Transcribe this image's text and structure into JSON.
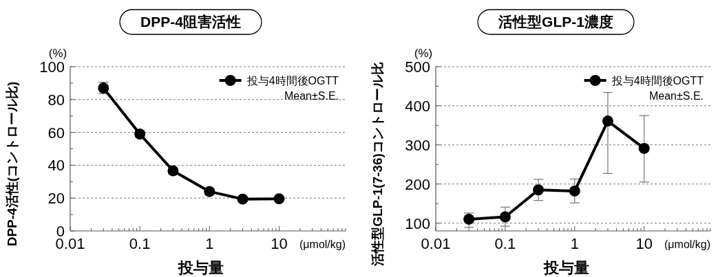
{
  "chart_data": [
    {
      "type": "line",
      "title": "DPP-4阻害活性",
      "xlabel": "投与量",
      "ylabel": "DPP-4活性(コントロール比)",
      "annotations": [
        "(%)",
        "(μmol/kg)",
        "Mean±S.E."
      ],
      "log": "x",
      "grid": "y",
      "legend": "top right",
      "marker": "circle",
      "line_style": "solid",
      "x": [
        0.03,
        0.1,
        0.3,
        1,
        3,
        10
      ],
      "series": [
        {
          "name": "投与4時間後OGTT",
          "color": "#000000",
          "values": [
            87,
            59,
            36.6,
            24,
            19.4,
            19.6
          ],
          "errors": [
            3.5,
            2,
            2,
            2,
            1,
            1
          ]
        }
      ],
      "xlim": [
        0.01,
        90
      ],
      "xticks": [
        0.01,
        0.1,
        1,
        10
      ],
      "ylim": [
        0,
        100
      ],
      "yticks": [
        0,
        {
          "value": 10,
          "label": null
        },
        20,
        {
          "value": 30,
          "label": null
        },
        40,
        {
          "value": 50,
          "label": null
        },
        60,
        {
          "value": 70,
          "label": null
        },
        80,
        {
          "value": 90,
          "label": null
        },
        100
      ]
    },
    {
      "type": "line",
      "title": "活性型GLP-1濃度",
      "xlabel": "投与量",
      "ylabel": "活性型GLP-1(7-36)コントロール比",
      "annotations": [
        "(%)",
        "(μmol/kg)",
        "Mean±S.E."
      ],
      "log": "x",
      "grid": "y",
      "legend": "top right",
      "marker": "circle",
      "line_style": "solid",
      "x": [
        0.03,
        0.1,
        0.3,
        1,
        3,
        10
      ],
      "series": [
        {
          "name": "投与4時間後OGTT",
          "color": "#000000",
          "values": [
            110,
            116,
            185,
            182,
            361,
            291
          ],
          "errors": [
            [
              89,
              126
            ],
            [
              92,
              141
            ],
            [
              158,
              212
            ],
            [
              152,
              213
            ],
            [
              227,
              434
            ],
            [
              205,
              375
            ]
          ]
        }
      ],
      "xlim": [
        0.01,
        90
      ],
      "xticks": [
        0.01,
        0.1,
        1,
        10
      ],
      "ylim": [
        80,
        500
      ],
      "yticks": [
        100,
        {
          "value": 150,
          "label": null
        },
        200,
        {
          "value": 250,
          "label": null
        },
        300,
        {
          "value": 350,
          "label": null
        },
        400,
        {
          "value": 450,
          "label": null
        },
        500
      ]
    }
  ]
}
